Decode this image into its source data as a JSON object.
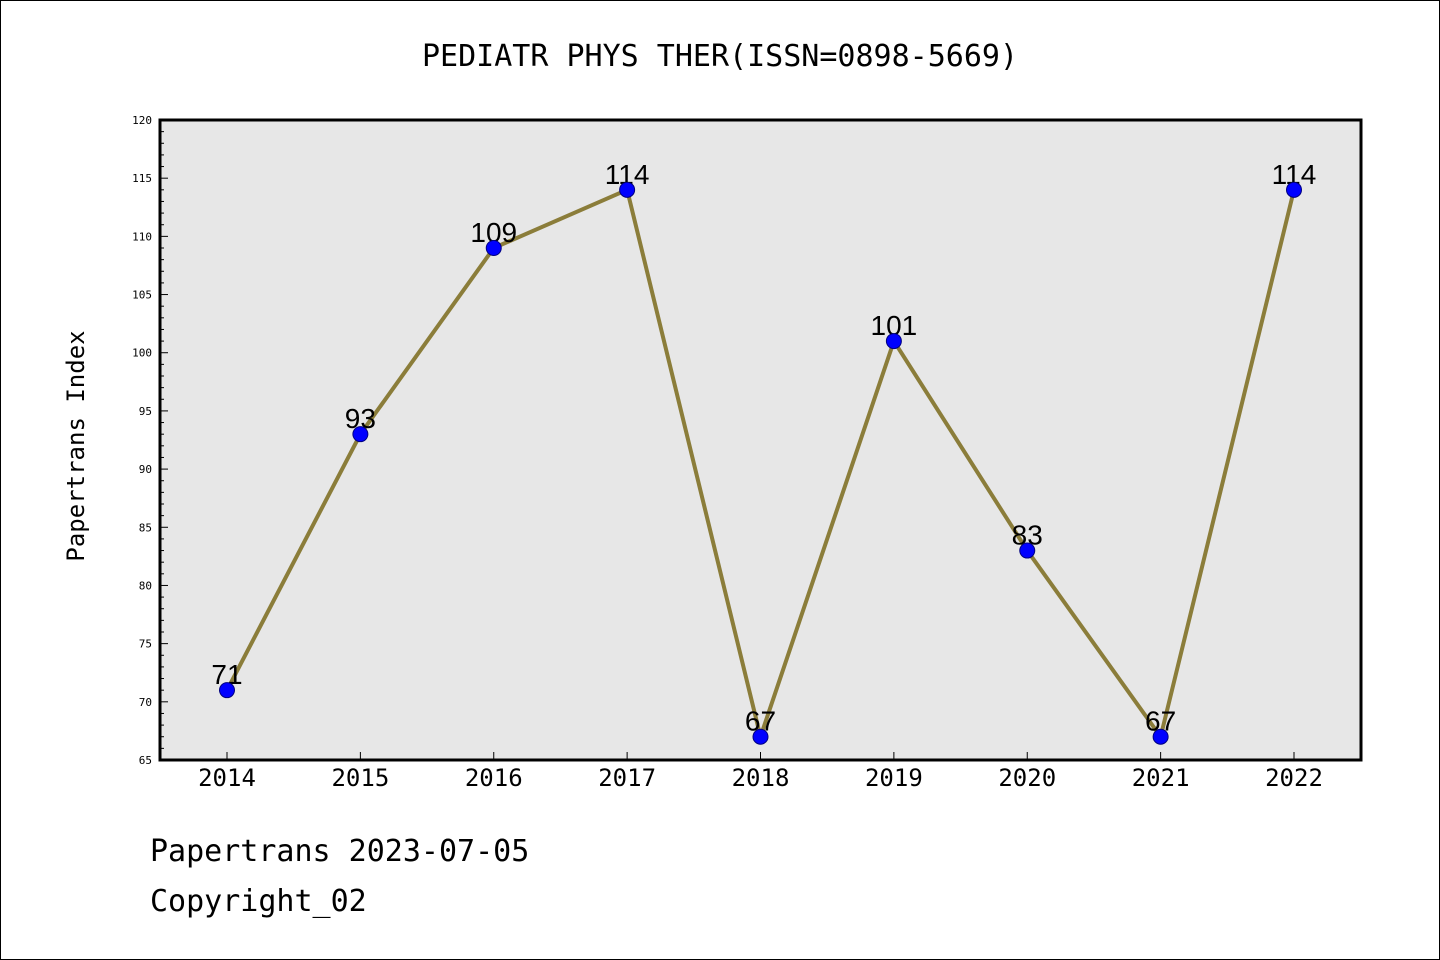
{
  "chart_data": {
    "type": "line",
    "title": "PEDIATR PHYS THER(ISSN=0898-5669)",
    "xlabel": "",
    "ylabel": "Papertrans Index",
    "categories": [
      "2014",
      "2015",
      "2016",
      "2017",
      "2018",
      "2019",
      "2020",
      "2021",
      "2022"
    ],
    "series": [
      {
        "values": [
          71,
          93,
          109,
          114,
          67,
          101,
          83,
          67,
          114
        ],
        "line_color": "#8b7d3a",
        "marker_color": "#0000ff",
        "marker_edge_color": "#000080"
      }
    ],
    "ylim": [
      65,
      120
    ],
    "yticks": [
      65,
      70,
      75,
      80,
      85,
      90,
      95,
      100,
      105,
      110,
      115,
      120
    ],
    "minor_tick_step": 1,
    "data_labels": true,
    "grid": false,
    "legend": "none",
    "plot_background": "#e7e7e7"
  },
  "footer": {
    "line1": "Papertrans 2023-07-05",
    "line2": "Copyright_02"
  }
}
